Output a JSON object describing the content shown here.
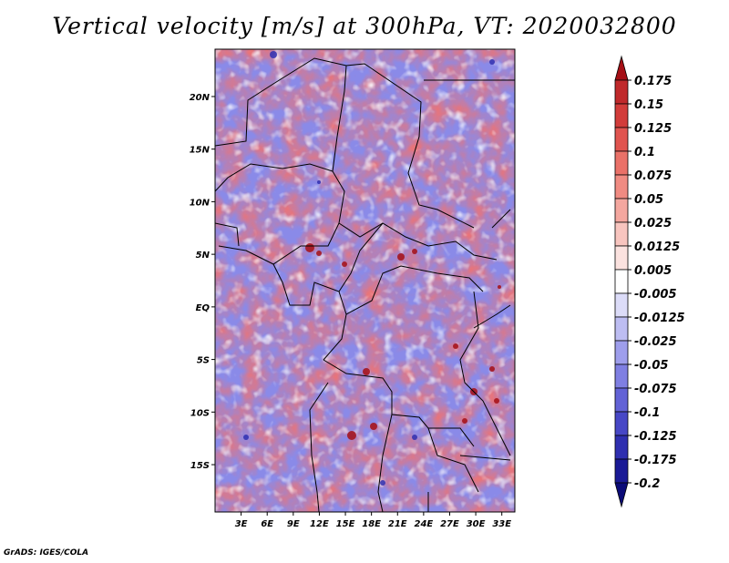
{
  "title": "Vertical velocity [m/s] at 300hPa, VT: 2020032800",
  "credit": "GrADS: IGES/COLA",
  "map": {
    "lat_ticks": [
      "20N",
      "15N",
      "10N",
      "5N",
      "EQ",
      "5S",
      "10S",
      "15S"
    ],
    "lon_ticks": [
      "3E",
      "6E",
      "9E",
      "12E",
      "15E",
      "18E",
      "21E",
      "24E",
      "27E",
      "30E",
      "33E"
    ],
    "lat_range": [
      -19.5,
      24.5
    ],
    "lon_range": [
      0,
      34.5
    ]
  },
  "colorbar": {
    "labels": [
      "0.175",
      "0.15",
      "0.125",
      "0.1",
      "0.075",
      "0.05",
      "0.025",
      "0.0125",
      "0.005",
      "-0.005",
      "-0.0125",
      "-0.025",
      "-0.05",
      "-0.075",
      "-0.1",
      "-0.125",
      "-0.175",
      "-0.2"
    ],
    "colors": [
      "#a50f15",
      "#c0292b",
      "#d23c3a",
      "#e0544f",
      "#ea7168",
      "#f08b82",
      "#f4a79f",
      "#f8c5bf",
      "#fbe2df",
      "#ffffff",
      "#dcdcf8",
      "#bdbdf2",
      "#9e9eec",
      "#7f7fe2",
      "#6262d6",
      "#4747c6",
      "#2f2fb0",
      "#1a1a96",
      "#0b0b78"
    ]
  }
}
